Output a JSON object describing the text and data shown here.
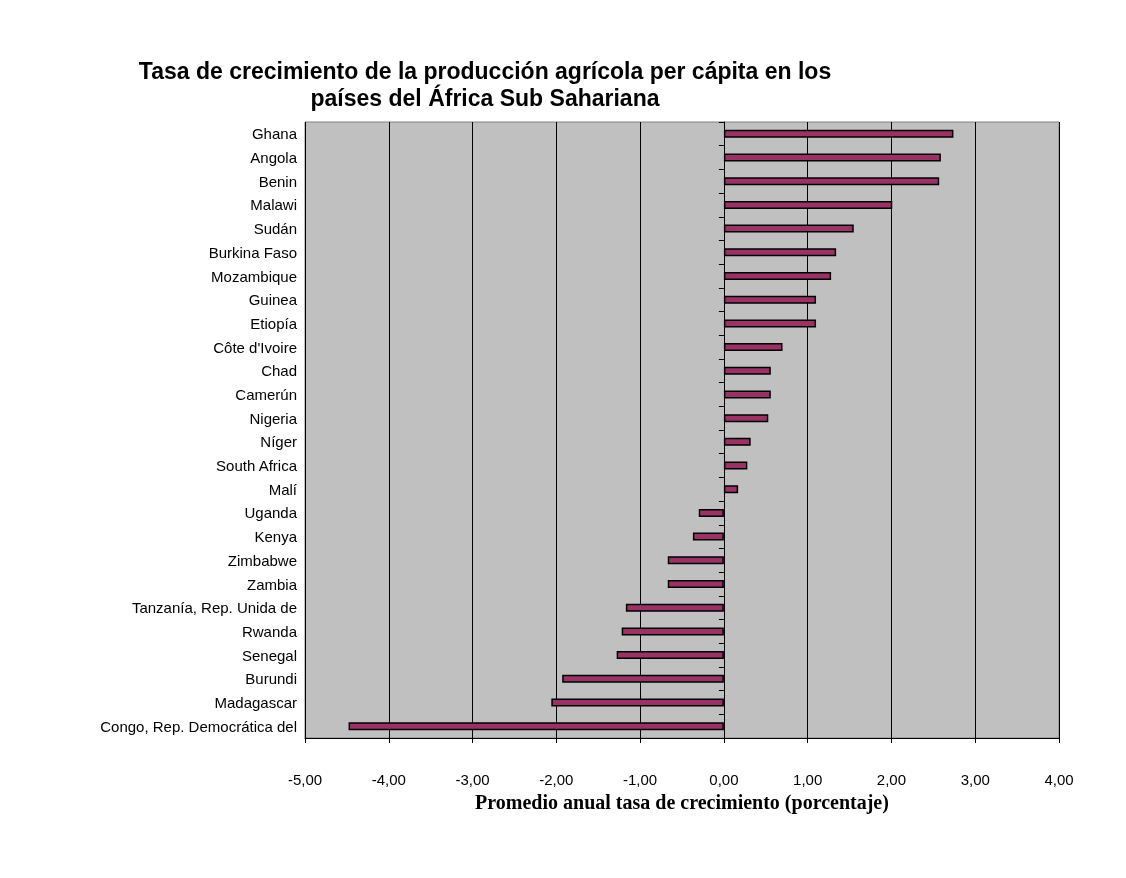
{
  "chart_data": {
    "type": "bar",
    "orientation": "horizontal",
    "title": "Tasa de crecimiento de la producción agrícola per cápita en los\npaíses del África Sub Sahariana",
    "xlabel": "Promedio anual tasa de crecimiento (porcentaje)",
    "categories": [
      "Ghana",
      "Angola",
      "Benin",
      "Malawi",
      "Sudán",
      "Burkina Faso",
      "Mozambique",
      "Guinea",
      "Etiopía",
      "Côte d'Ivoire",
      "Chad",
      "Camerún",
      "Nigeria",
      "Níger",
      "South Africa",
      "Malí",
      "Uganda",
      "Kenya",
      "Zimbabwe",
      "Zambia",
      "Tanzanía, Rep. Unida de",
      "Rwanda",
      "Senegal",
      "Burundi",
      "Madagascar",
      "Congo, Rep. Democrática del"
    ],
    "values": [
      2.74,
      2.59,
      2.57,
      2.01,
      1.55,
      1.34,
      1.28,
      1.1,
      1.1,
      0.7,
      0.56,
      0.56,
      0.53,
      0.32,
      0.28,
      0.17,
      -0.3,
      -0.37,
      -0.67,
      -0.67,
      -1.17,
      -1.22,
      -1.28,
      -1.93,
      -2.06,
      -4.48
    ],
    "color": "#993366",
    "xlim": [
      -5,
      4
    ],
    "xticks": [
      {
        "value": -5,
        "label": "-5,00"
      },
      {
        "value": -4,
        "label": "-4,00"
      },
      {
        "value": -3,
        "label": "-3,00"
      },
      {
        "value": -2,
        "label": "-2,00"
      },
      {
        "value": -1,
        "label": "-1,00"
      },
      {
        "value": 0,
        "label": "0,00"
      },
      {
        "value": 1,
        "label": "1,00"
      },
      {
        "value": 2,
        "label": "2,00"
      },
      {
        "value": 3,
        "label": "3,00"
      },
      {
        "value": 4,
        "label": "4,00"
      }
    ],
    "grid": "x"
  }
}
